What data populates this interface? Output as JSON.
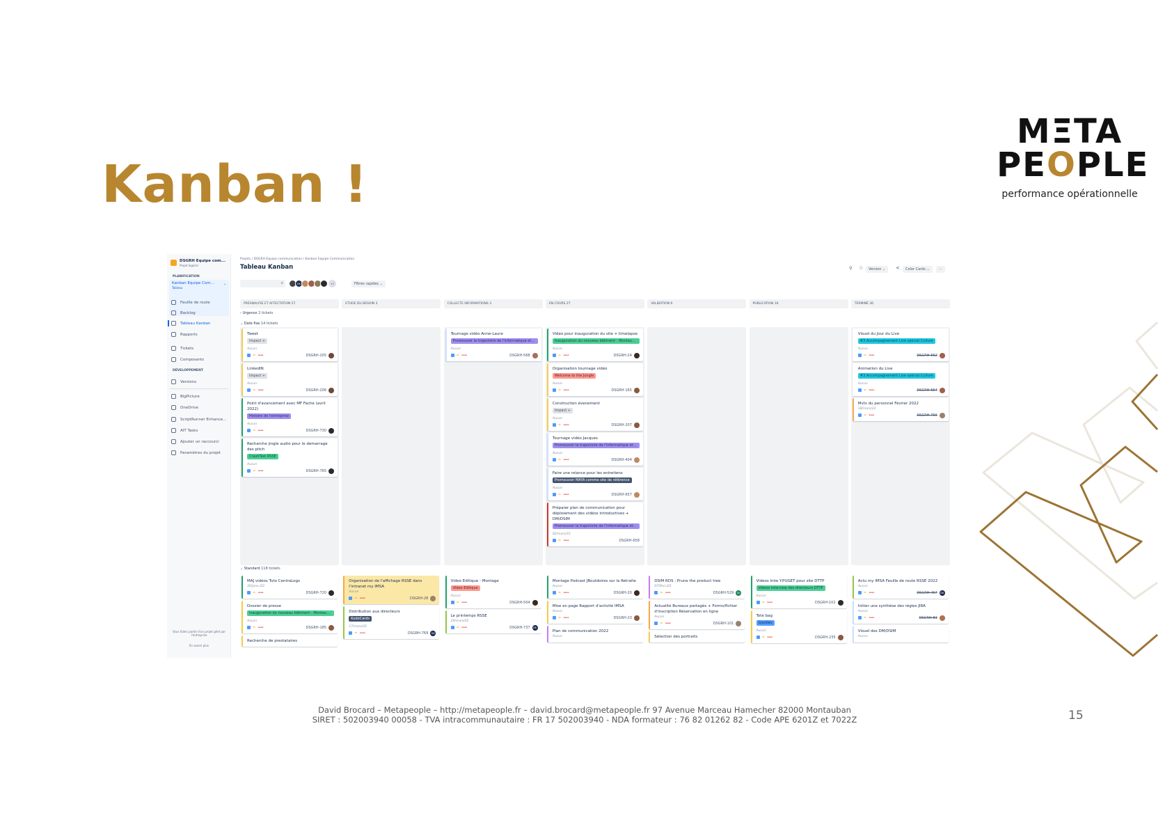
{
  "slide": {
    "title": "Kanban !",
    "page_number": "15",
    "logo": {
      "line1": "MΞTA",
      "line2": "PEOPLE",
      "tagline": "performance opérationnelle"
    },
    "footer": {
      "line1": "David Brocard – Metapeople – http://metapeople.fr – david.brocard@metapeople.fr 97 Avenue Marceau Hamecher 82000 Montauban",
      "line2": "SIRET : 502003940 00058 - TVA intracommunautaire : FR 17 502003940 - NDA formateur : 76 82 01262 82 - Code APE 6201Z et 7022Z"
    },
    "accent": "#b8862f"
  },
  "sidebar": {
    "project": "DSGRH Equipe com...",
    "project_type": "Projet logiciel",
    "section1": "PLANIFICATION",
    "board": "Kanban Equipe Com...",
    "board_type": "Tableau",
    "items": [
      {
        "label": "Feuille de route"
      },
      {
        "label": "Backlog"
      },
      {
        "label": "Tableau Kanban",
        "active": true
      },
      {
        "label": "Rapports"
      },
      {
        "label": "Tickets"
      },
      {
        "label": "Composants"
      }
    ],
    "section2": "DÉVELOPPEMENT",
    "items2": [
      {
        "label": "Versions"
      },
      {
        "label": "BigPicture"
      },
      {
        "label": "OneDrive"
      },
      {
        "label": "ScriptRunner Enhance..."
      },
      {
        "label": "AIT Tasks"
      },
      {
        "label": "Ajouter un raccourci"
      },
      {
        "label": "Paramètres du projet"
      }
    ],
    "footer": "Vous faites partie d'un projet géré par l'entreprise",
    "footer_link": "En savoir plus"
  },
  "header": {
    "breadcrumb": [
      "Projets",
      "DSGRH Equipe communication",
      "Kanban Equipe Communication"
    ],
    "title": "Tableau Kanban",
    "search_placeholder": "",
    "avatar_more": "+2",
    "quick_filters": "Filtres rapides",
    "version": "Version",
    "color_cards": "Color Cards",
    "more": "···"
  },
  "columns": [
    "PRÉANALYSE ET AFFECTATION 57",
    "ETUDE DU BESOIN 3",
    "COLLECTE INFORMATIONS 3",
    "EN COURS 27",
    "VALIDATION 9",
    "PUBLICATION 16",
    "TERMINÉ 30"
  ],
  "lanes": {
    "urgence": {
      "name": "Urgence",
      "count": "2 tickets"
    },
    "date_fixe": {
      "name": "Date fixe",
      "count": "14 tickets"
    },
    "standard": {
      "name": "Standard",
      "count": "118 tickets"
    }
  },
  "date_fixe_cards": [
    [
      {
        "title": "Tweet",
        "label": "Impact +",
        "lc": "#dfe1e6",
        "tc": "#44546f",
        "meta": "Aucun",
        "key": "DSGRH-205",
        "border": "#f5cd47",
        "av": "#6b4a3a"
      },
      {
        "title": "LinkedIN",
        "label": "Impact +",
        "lc": "#dfe1e6",
        "tc": "#44546f",
        "meta": "Aucun",
        "key": "DSGRH-206",
        "border": "#f5cd47",
        "av": "#6b4a3a"
      },
      {
        "title": "Point d'avancement avec MF Fache (avril 2022)",
        "label": "Histoire de l'entreprise",
        "lc": "#9f8fef",
        "tc": "#352c63",
        "meta": "Aucun",
        "key": "DSGRH-730",
        "border": "#22a06b",
        "av": "#2b2b2b"
      },
      {
        "title": "Recherche jingle audio pour le demarrage des pitch",
        "label": "CrashTest RSSE",
        "lc": "#4bce97",
        "tc": "#164b35",
        "meta": "Aucun",
        "key": "DSGRH-765",
        "border": "#22a06b",
        "av": "#2b2b2b"
      }
    ],
    [],
    [
      {
        "title": "Tournage vidéo Anne-Laure",
        "label": "Promouvoir la trajectoire de l'informatique et l...",
        "lc": "#9f8fef",
        "tc": "#352c63",
        "meta": "Aucun",
        "key": "DSGRH-568",
        "border": "#cce0ff",
        "av": "#a5705a"
      }
    ],
    [
      {
        "title": "Video pour inauguration du site + timelapse",
        "label": "Inauguration du nouveau bâtiment - Montauban",
        "lc": "#4bce97",
        "tc": "#164b35",
        "meta": "Aucun",
        "key": "DSGRH-24",
        "border": "#22a06b",
        "av": "#3a2a20"
      },
      {
        "title": "Organisation tournage vidéo",
        "label": "Welcome to the Jungle",
        "lc": "#fd9891",
        "tc": "#5d1f1a",
        "meta": "Aucun",
        "key": "DSGRH-165",
        "border": "#f5cd47",
        "av": "#8a5a40"
      },
      {
        "title": "Construction évenement",
        "label": "Impact +",
        "lc": "#dfe1e6",
        "tc": "#44546f",
        "meta": "Aucun",
        "key": "DSGRH-207",
        "border": "#f5cd47",
        "av": "#8a5a40"
      },
      {
        "title": "Tournage vidéo Jacques",
        "label": "Promouvoir la trajectoire de l'informatique et l...",
        "lc": "#9f8fef",
        "tc": "#352c63",
        "meta": "Aucun",
        "key": "DSGRH-404",
        "border": "#cce0ff",
        "av": "#c08a60"
      },
      {
        "title": "Faire une relance pour les entretiens",
        "label": "Promouvoir MAYA comme site de référence",
        "lc": "#44546f",
        "tc": "#fff",
        "meta": "Aucun",
        "key": "DSGRH-657",
        "border": "#cce0ff",
        "av": "#c08a60"
      },
      {
        "title": "Préparer plan de communication pour déploiement des vidéos introductives + DM/DSIM",
        "label": "Promouvoir la trajectoire de l'informatique et l...",
        "lc": "#9f8fef",
        "tc": "#352c63",
        "meta": "02/mars/22",
        "key": "DSGRH-658",
        "border": "#c9372c",
        "av": ""
      }
    ],
    [],
    [],
    [
      {
        "title": "Visuel du Jour du Live",
        "label": "#3 Accompagnement Live spécial Culture",
        "lc": "#1fc7e0",
        "tc": "#0b4f5c",
        "meta": "Aucun",
        "key": "DSGRH-662",
        "border": "#fff",
        "av": "#a0604a",
        "done": true
      },
      {
        "title": "Animation du Live",
        "label": "#3 Accompagnement Live spécial Culture",
        "lc": "#1fc7e0",
        "tc": "#0b4f5c",
        "meta": "Aucun",
        "key": "DSGRH-664",
        "border": "#fff",
        "av": "#a0604a",
        "done": true
      },
      {
        "title": "Mvts du personnel Février 2022",
        "label": "",
        "meta": "18/mars/22",
        "key": "DSGRH-766",
        "border": "#f8a94a",
        "av": "#9a8070",
        "done": true
      }
    ]
  ],
  "standard_cards": [
    [
      {
        "title": "MAJ vidéos Tuto CentraLogs",
        "label": "",
        "meta": "30/janv./22",
        "key": "DSGRH-720",
        "border": "#22a06b",
        "av": "#2b2b2b"
      },
      {
        "title": "Dossier de presse",
        "label": "Inauguration du nouveau bâtiment - Montauban",
        "lc": "#4bce97",
        "tc": "#164b35",
        "meta": "Aucun",
        "key": "DSGRH-185",
        "border": "#f5cd47",
        "av": "#8a5a40"
      },
      {
        "title": "Recherche de prestataires",
        "label": "",
        "meta": "",
        "key": "",
        "border": "#f5cd47",
        "av": ""
      }
    ],
    [
      {
        "title": "Organisation de l'affichage RSSE dans l'intranet my IMSA",
        "label": "",
        "meta": "Aucun",
        "key": "DSGRH-28",
        "border": "#f8a94a",
        "av": "#9a8070",
        "bg": "#fbe7a6"
      },
      {
        "title": "Distribution aux directeurs",
        "label": "KudoCards",
        "lc": "#44546f",
        "tc": "#fff",
        "meta": "17/mars/22",
        "key": "DSGRH-769",
        "border": "#94c748",
        "av": "#1d2b4f",
        "avt": "DK"
      }
    ],
    [
      {
        "title": "Video Editique - Montage",
        "label": "Video Editique",
        "lc": "#fd9891",
        "tc": "#5d1f1a",
        "meta": "Aucun",
        "key": "DSGRH-504",
        "border": "#22a06b",
        "av": "#3a2a20"
      },
      {
        "title": "Le printemps RSSE",
        "label": "",
        "meta": "29/mars/22",
        "key": "DSGRH-737",
        "border": "#94c748",
        "av": "#1d2b4f",
        "avt": "DK"
      }
    ],
    [
      {
        "title": "Montage Podcast JBouldoires sur la Retraite",
        "label": "",
        "meta": "Aucun",
        "key": "DSGRH-20",
        "border": "#22a06b",
        "av": "#3a2a20"
      },
      {
        "title": "Mise en page Rapport d'activité IMSA",
        "label": "",
        "meta": "Aucun",
        "key": "DSGRH-23",
        "border": "#f5cd47",
        "av": "#8a5a40"
      },
      {
        "title": "Plan de communication 2022",
        "label": "",
        "meta": "Aucun",
        "key": "",
        "border": "#c97cf4",
        "av": ""
      }
    ],
    [
      {
        "title": "DSIM RDS : Prune the product tree",
        "label": "",
        "meta": "07/févr./22",
        "key": "DSGRH-529",
        "border": "#c97cf4",
        "av": "#1f845a",
        "avt": "SG"
      },
      {
        "title": "Actualité Bureaux partagés + Forms/fichier d'inscription Réservation en ligne",
        "label": "",
        "meta": "Aucun",
        "key": "DSGRH-101",
        "border": "#f8a94a",
        "av": "#9a8070"
      },
      {
        "title": "Sélection des portraits",
        "label": "",
        "meta": "",
        "key": "",
        "border": "#f5cd47",
        "av": ""
      }
    ],
    [
      {
        "title": "Videos Intw Y.PUGET pour site DTTP",
        "label": "Videos interview des directeurs DTTP",
        "lc": "#4bce97",
        "tc": "#164b35",
        "meta": "Aucun",
        "key": "DSGRH-102",
        "border": "#22a06b",
        "av": "#2b2b2b"
      },
      {
        "title": "Tote bag",
        "label": "Goodies",
        "lc": "#579dff",
        "tc": "#09326c",
        "meta": "Aucun",
        "key": "DSGRH-235",
        "border": "#f5cd47",
        "av": "#8a5a40"
      }
    ],
    [
      {
        "title": "Actu my IMSA Feuille de route RSSE 2022",
        "label": "",
        "meta": "Aucun",
        "key": "DSGRH-467",
        "border": "#94c748",
        "av": "#1d2b4f",
        "avt": "DK",
        "done": true
      },
      {
        "title": "Initier une synthèse des règles JIRA",
        "label": "",
        "meta": "Aucun",
        "key": "DSGRH-83",
        "border": "#cce0ff",
        "av": "#b07050",
        "done": true
      },
      {
        "title": "Visuel des DM/DSIM",
        "label": "",
        "meta": "Aucun",
        "key": "",
        "border": "#cce0ff",
        "av": ""
      }
    ]
  ]
}
